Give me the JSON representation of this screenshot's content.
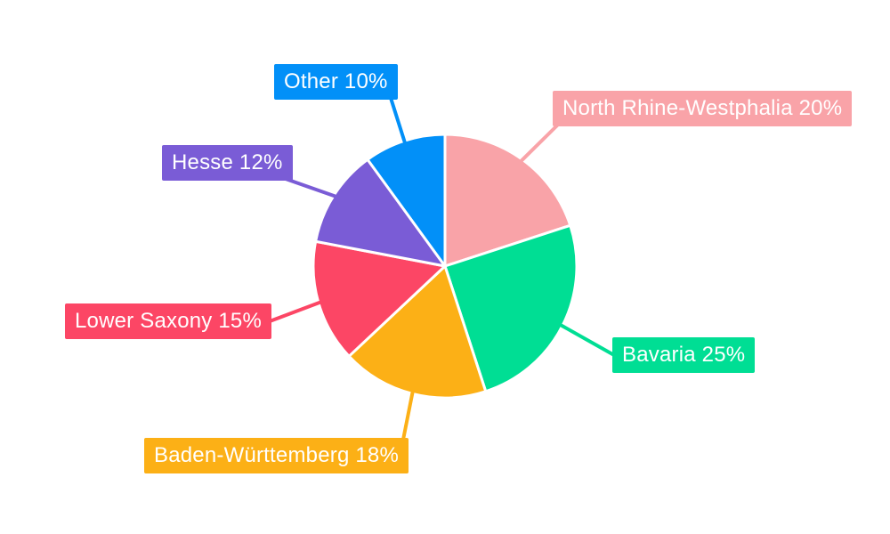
{
  "chart_data": {
    "type": "pie",
    "title": "",
    "background_color": "#FFFFFF",
    "label_text_color": "#FFFFFF",
    "label_format": "{name} {value}%",
    "direction": "clockwise",
    "start_angle": "top",
    "slice_gap_color": "#FFFFFF",
    "slices": [
      {
        "name": "North Rhine-Westphalia",
        "value": 20,
        "color": "#F9A3A8"
      },
      {
        "name": "Bavaria",
        "value": 25,
        "color": "#00DE94"
      },
      {
        "name": "Baden-Württemberg",
        "value": 18,
        "color": "#FCB016"
      },
      {
        "name": "Lower Saxony",
        "value": 15,
        "color": "#FC4665"
      },
      {
        "name": "Hesse",
        "value": 12,
        "color": "#7A5CD6"
      },
      {
        "name": "Other",
        "value": 10,
        "color": "#0290F8"
      }
    ]
  }
}
